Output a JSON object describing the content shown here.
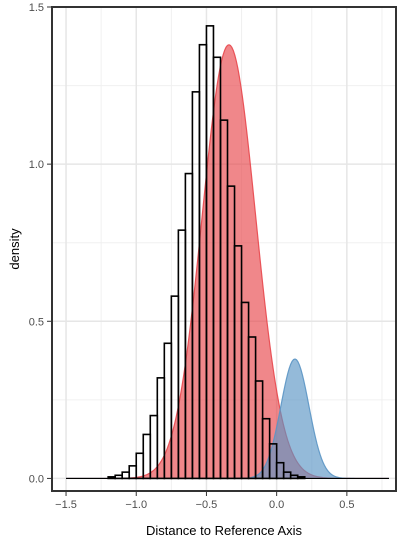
{
  "chart_data": {
    "type": "histogram",
    "xlabel": "Distance to Reference Axis",
    "ylabel": "density",
    "xlim": [
      -1.6,
      0.85
    ],
    "ylim": [
      -0.04,
      1.5
    ],
    "xticks": [
      -1.5,
      -1.0,
      -0.5,
      0.0,
      0.5
    ],
    "xtick_labels": [
      "−1.5",
      "−1.0",
      "−0.5",
      "0.0",
      "0.5"
    ],
    "yticks": [
      0.0,
      0.5,
      1.0,
      1.5
    ],
    "ytick_labels": [
      "0.0",
      "0.5",
      "1.0",
      "1.5"
    ],
    "grid": true,
    "histogram": {
      "bin_width": 0.05,
      "bins_start": -1.5,
      "bins_end": 0.8,
      "density": [
        0.0,
        0.0,
        0.0,
        0.0,
        0.0,
        0.0,
        0.005,
        0.01,
        0.02,
        0.04,
        0.08,
        0.14,
        0.2,
        0.32,
        0.43,
        0.58,
        0.79,
        0.97,
        1.23,
        1.38,
        1.44,
        1.34,
        1.14,
        0.93,
        0.74,
        0.56,
        0.45,
        0.31,
        0.19,
        0.11,
        0.05,
        0.02,
        0.01,
        0.005,
        0.0,
        0.0,
        0.0,
        0.0,
        0.0,
        0.0,
        0.0,
        0.0,
        0.0,
        0.0,
        0.0,
        0.0
      ]
    },
    "series": [
      {
        "type": "density",
        "mean": -0.34,
        "sd": 0.19,
        "peak": 1.38,
        "fill": "#e8474c",
        "opacity": 0.65
      },
      {
        "type": "density",
        "mean": 0.13,
        "sd": 0.1,
        "peak": 0.38,
        "fill": "#5b95c4",
        "opacity": 0.65
      }
    ]
  }
}
